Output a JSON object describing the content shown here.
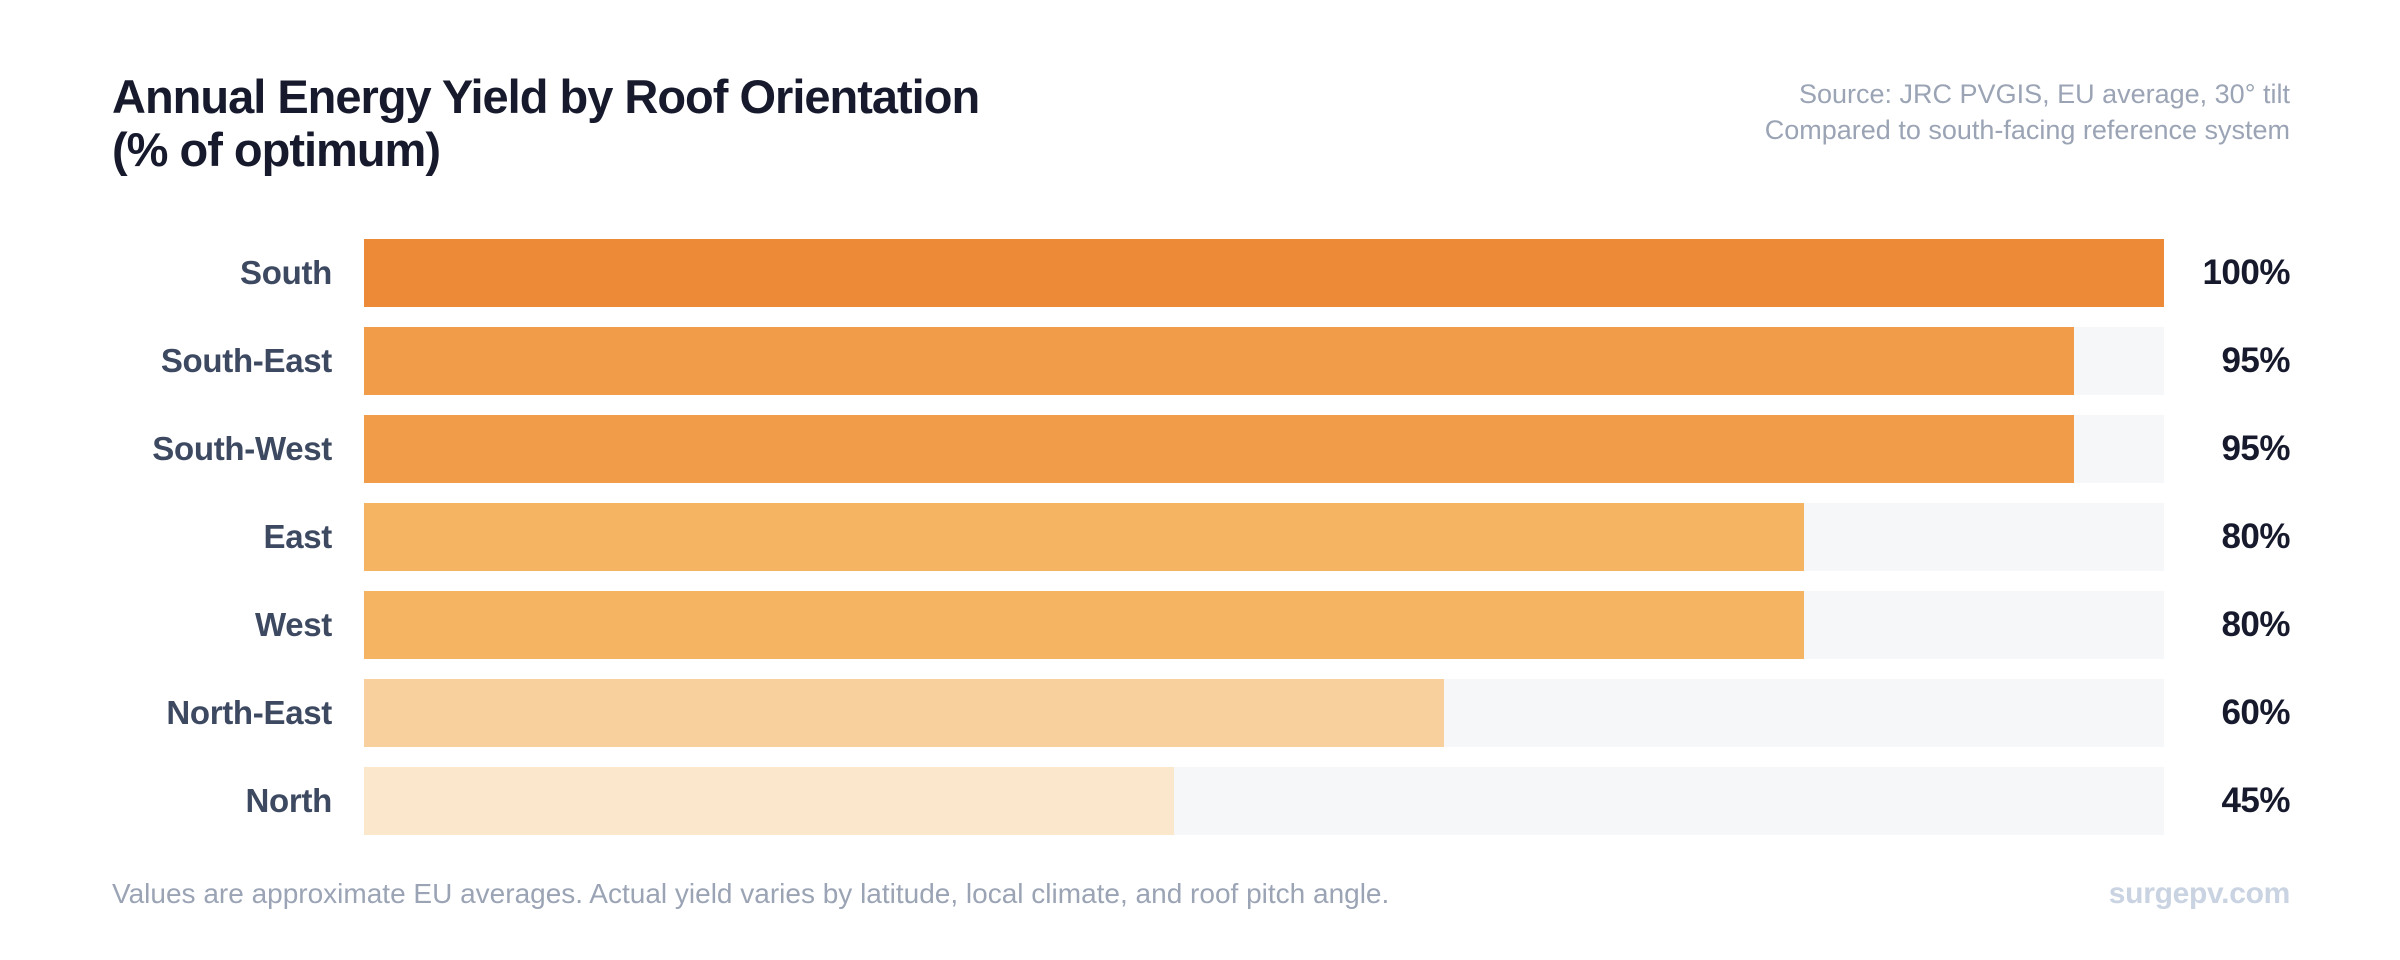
{
  "header": {
    "title_line1": "Annual Energy Yield by Roof Orientation",
    "title_line2": "(% of optimum)",
    "source_line1": "Source: JRC PVGIS, EU average, 30° tilt",
    "source_line2": "Compared to south-facing reference system"
  },
  "chart_data": {
    "type": "bar",
    "orientation": "horizontal",
    "title": "Annual Energy Yield by Roof Orientation (% of optimum)",
    "categories": [
      "South",
      "South-East",
      "South-West",
      "East",
      "West",
      "North-East",
      "North"
    ],
    "values": [
      100,
      95,
      95,
      80,
      80,
      60,
      45
    ],
    "value_labels": [
      "100%",
      "95%",
      "95%",
      "80%",
      "80%",
      "60%",
      "45%"
    ],
    "xlim": [
      0,
      100
    ],
    "grid": false,
    "legend": false,
    "bar_colors": [
      "#EC8A38",
      "#F09C48",
      "#F09C48",
      "#F4B462",
      "#F4B462",
      "#F8D09E",
      "#FBE7CC"
    ],
    "track_color": "#F6F7F9"
  },
  "footer": {
    "note": "Values are approximate EU averages. Actual yield varies by latitude, local climate, and roof pitch angle.",
    "brand": "surgepv.com"
  },
  "colors": {
    "title": "#171A2C",
    "category_label": "#3D4961",
    "value_label": "#171A2C",
    "muted_text": "#9BA4B5",
    "brand_text": "#C9D3E2",
    "background": "#FFFFFF"
  }
}
